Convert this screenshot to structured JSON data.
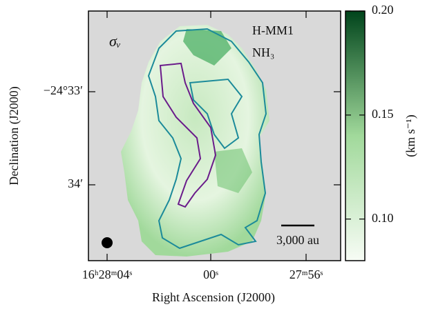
{
  "chart_data": {
    "type": "map",
    "annotations": {
      "quantity": "σᵥ",
      "source": "H-MM1",
      "molecule": "NH₃",
      "scale_bar": "3,000 au"
    },
    "xlabel": "Right Ascension (J2000)",
    "ylabel": "Declination (J2000)",
    "x_tick_labels": [
      "16ʰ28ᵐ04ˢ",
      "00ˢ",
      "27ᵐ56ˢ"
    ],
    "y_tick_labels": [
      "−24°33′",
      "34′"
    ],
    "colorbar": {
      "label": "(km s⁻¹)",
      "lim": [
        0.08,
        0.2
      ],
      "ticks": [
        {
          "value": 0.1,
          "label": "0.10"
        },
        {
          "value": 0.15,
          "label": "0.15"
        },
        {
          "value": 0.2,
          "label": "0.20"
        }
      ],
      "colors": [
        "#f7fcf5",
        "#a1d99b",
        "#00441b"
      ]
    }
  }
}
